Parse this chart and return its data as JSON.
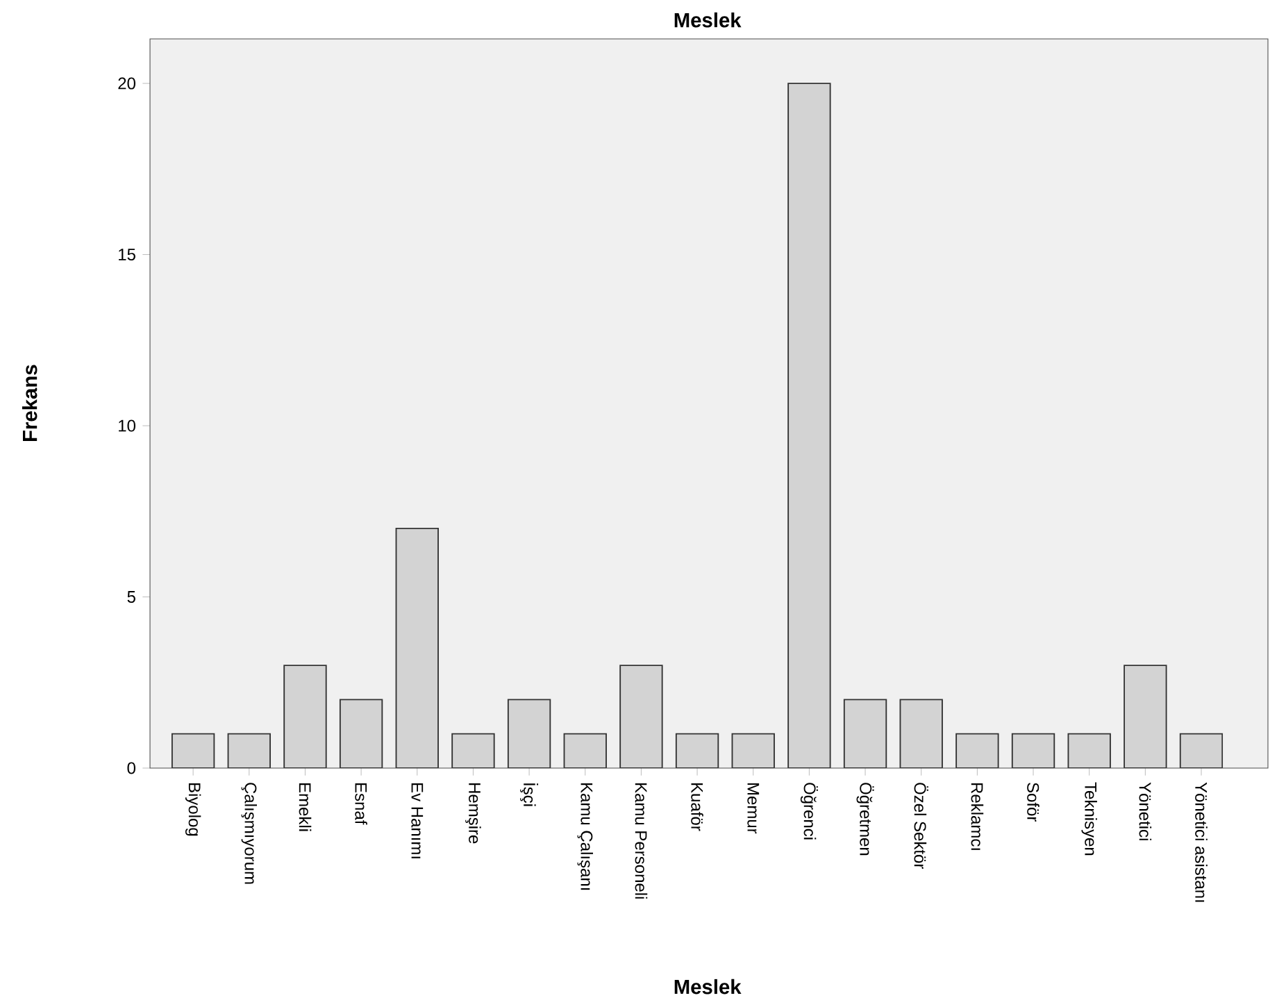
{
  "chart_data": {
    "type": "bar",
    "title": "Meslek",
    "xlabel": "Meslek",
    "ylabel": "Frekans",
    "categories": [
      "Biyolog",
      "Çalışmıyorum",
      "Emekli",
      "Esnaf",
      "Ev Hanımı",
      "Hemşire",
      "İşçi",
      "Kamu Çalışanı",
      "Kamu Personeli",
      "Kuaför",
      "Memur",
      "Öğrenci",
      "Öğretmen",
      "Özel Sektör",
      "Reklamcı",
      "Soför",
      "Teknisyen",
      "Yönetici",
      "Yönetici asistanı"
    ],
    "values": [
      1,
      1,
      3,
      2,
      7,
      1,
      2,
      1,
      3,
      1,
      1,
      20,
      2,
      2,
      1,
      1,
      1,
      3,
      1
    ],
    "color": "#d3d3d3",
    "ylim": [
      0,
      21.3
    ],
    "yticks": [
      0,
      5,
      10,
      15,
      20
    ]
  }
}
